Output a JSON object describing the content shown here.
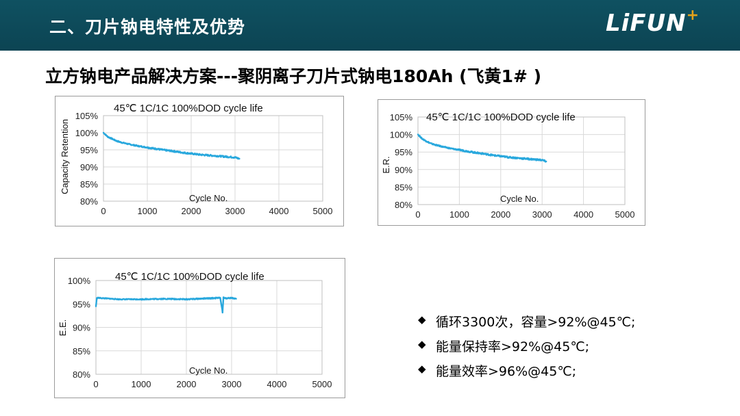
{
  "header": {
    "title": "二、刀片钠电特性及优势",
    "logo_text": "LiFUN",
    "logo_plus": "+"
  },
  "subtitle": "立方钠电产品解决方案---聚阴离子刀片式钠电180Ah (飞黄1# )",
  "bullets": [
    {
      "icon": "diamond-icon",
      "text": "循环3300次，容量>92%@45℃;"
    },
    {
      "icon": "diamond-icon",
      "text": "能量保持率>92%@45℃;"
    },
    {
      "icon": "diamond-icon",
      "text": "能量效率>96%@45℃;"
    }
  ],
  "colors": {
    "header_bg": "#0c4453",
    "series": "#29a8dd",
    "grid": "#d9d9d9",
    "logo_plus": "#e5a21b"
  },
  "chart_data": [
    {
      "type": "line",
      "title": "45℃ 1C/1C 100%DOD cycle life",
      "xlabel": "Cycle No.",
      "ylabel": "Capacity Retention",
      "xlim": [
        0,
        5000
      ],
      "ylim": [
        80,
        105
      ],
      "xticks": [
        "0",
        "1000",
        "2000",
        "3000",
        "4000",
        "5000"
      ],
      "yticks": [
        "80%",
        "85%",
        "90%",
        "95%",
        "100%",
        "105%"
      ],
      "grid": true,
      "series": [
        {
          "x": [
            0,
            100,
            200,
            300,
            400,
            600,
            800,
            1000,
            1200,
            1400,
            1600,
            1800,
            2000,
            2200,
            2400,
            2600,
            2800,
            3000,
            3100
          ],
          "y": [
            100,
            98.8,
            98.2,
            97.6,
            97.2,
            96.6,
            96.1,
            95.7,
            95.3,
            94.9,
            94.6,
            94.2,
            93.9,
            93.6,
            93.4,
            93.2,
            93.0,
            92.8,
            92.4
          ]
        }
      ]
    },
    {
      "type": "line",
      "title": "45℃ 1C/1C 100%DOD cycle life",
      "xlabel": "Cycle No.",
      "ylabel": "E.R.",
      "xlim": [
        0,
        5000
      ],
      "ylim": [
        80,
        105
      ],
      "xticks": [
        "0",
        "1000",
        "2000",
        "3000",
        "4000",
        "5000"
      ],
      "yticks": [
        "80%",
        "85%",
        "90%",
        "95%",
        "100%",
        "105%"
      ],
      "grid": true,
      "series": [
        {
          "x": [
            0,
            100,
            200,
            300,
            400,
            600,
            800,
            1000,
            1200,
            1400,
            1600,
            1800,
            2000,
            2200,
            2400,
            2600,
            2800,
            3000,
            3100
          ],
          "y": [
            100,
            98.8,
            98.1,
            97.5,
            97.1,
            96.5,
            96.0,
            95.6,
            95.2,
            94.8,
            94.5,
            94.1,
            93.8,
            93.5,
            93.3,
            93.1,
            92.9,
            92.7,
            92.3
          ]
        }
      ]
    },
    {
      "type": "line",
      "title": "45℃ 1C/1C 100%DOD cycle life",
      "xlabel": "Cycle No.",
      "ylabel": "E.E.",
      "xlim": [
        0,
        5000
      ],
      "ylim": [
        80,
        100
      ],
      "xticks": [
        "0",
        "1000",
        "2000",
        "3000",
        "4000",
        "5000"
      ],
      "yticks": [
        "80%",
        "85%",
        "90%",
        "95%",
        "100%"
      ],
      "grid": true,
      "series": [
        {
          "x": [
            0,
            20,
            40,
            200,
            500,
            1000,
            1500,
            2000,
            2500,
            2750,
            2800,
            2820,
            2850,
            3000,
            3100
          ],
          "y": [
            94.5,
            96.2,
            96.3,
            96.2,
            96.0,
            96.0,
            96.1,
            96.0,
            96.2,
            96.3,
            93.2,
            96.4,
            96.2,
            96.3,
            96.1
          ]
        }
      ]
    }
  ]
}
